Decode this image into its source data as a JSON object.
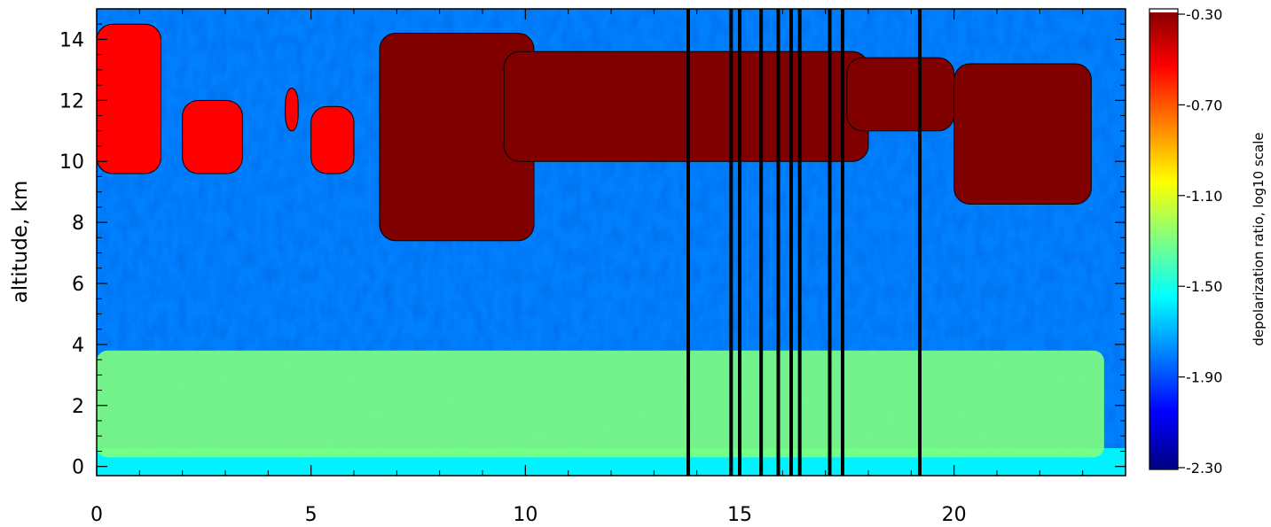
{
  "chart_data": {
    "type": "heatmap",
    "title": "",
    "xlabel": "",
    "ylabel": "altitude, km",
    "xlim": [
      0,
      24
    ],
    "ylim": [
      -0.3,
      15
    ],
    "x_ticks": [
      0,
      5,
      10,
      15,
      20
    ],
    "y_ticks": [
      0,
      2,
      4,
      6,
      8,
      10,
      12,
      14
    ],
    "colorbar": {
      "label": "depolarization ratio, log10 scale",
      "range": [
        -2.3,
        -0.3
      ],
      "ticks": [
        "-0.30",
        "-0.70",
        "-1.10",
        "-1.50",
        "-1.90",
        "-2.30"
      ],
      "colormap": [
        "#000080",
        "#0000ff",
        "#0080ff",
        "#00ffff",
        "#80ff80",
        "#ffff00",
        "#ff8000",
        "#ff0000",
        "#800000"
      ],
      "top_color": "#ffffff"
    },
    "features": {
      "boundary_layer_aerosol": {
        "x": [
          0,
          23.5
        ],
        "alt_km": [
          0.3,
          3.8
        ],
        "log10_depol": -1.2
      },
      "near_surface_layer": {
        "alt_km": [
          0,
          0.6
        ],
        "log10_depol": -1.55
      },
      "background": {
        "log10_depol": -1.75
      },
      "cirrus_clouds": [
        {
          "x": [
            0,
            1.5
          ],
          "alt_km": [
            9.6,
            14.5
          ],
          "log10_depol": -0.45
        },
        {
          "x": [
            2.0,
            3.4
          ],
          "alt_km": [
            9.6,
            12.0
          ],
          "log10_depol": -0.45
        },
        {
          "x": [
            4.4,
            4.7
          ],
          "alt_km": [
            11.0,
            12.4
          ],
          "log10_depol": -0.5
        },
        {
          "x": [
            5.0,
            6.0
          ],
          "alt_km": [
            9.6,
            11.8
          ],
          "log10_depol": -0.45
        },
        {
          "x": [
            6.6,
            10.2
          ],
          "alt_km": [
            7.4,
            14.2
          ],
          "log10_depol": -0.4
        },
        {
          "x": [
            9.5,
            18.0
          ],
          "alt_km": [
            10.0,
            13.6
          ],
          "log10_depol": -0.4
        },
        {
          "x": [
            17.5,
            20.0
          ],
          "alt_km": [
            11.0,
            13.4
          ],
          "log10_depol": -0.4
        },
        {
          "x": [
            20.0,
            23.2
          ],
          "alt_km": [
            8.6,
            13.2
          ],
          "log10_depol": -0.4
        }
      ],
      "no_data_columns_x": [
        13.8,
        14.8,
        15.0,
        15.5,
        15.9,
        16.2,
        16.4,
        17.1,
        17.4,
        19.2
      ]
    }
  }
}
